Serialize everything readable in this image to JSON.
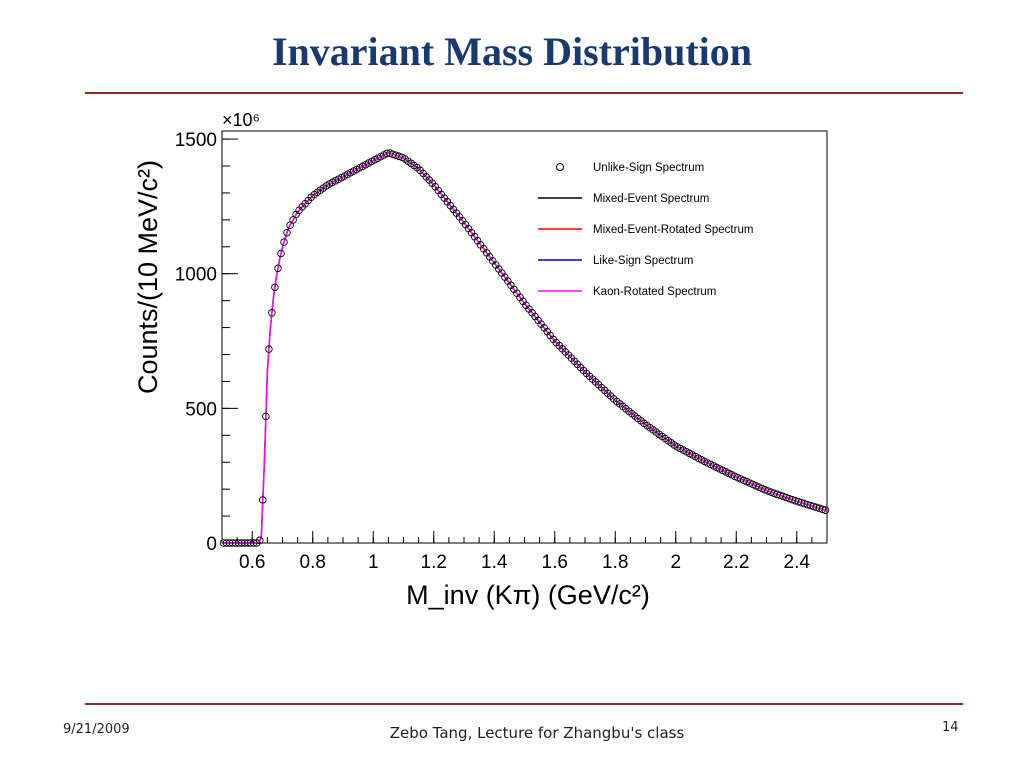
{
  "slide": {
    "title": "Invariant Mass Distribution",
    "footer_date": "9/21/2009",
    "footer_center": "Zebo Tang, Lecture for Zhangbu's class",
    "page_number": "14"
  },
  "colors": {
    "title": "#1a3a6e",
    "rule": "#8b2a2a",
    "mixed_event": "#000000",
    "mixed_event_rotated": "#ff0000",
    "like_sign": "#0000cc",
    "kaon_rotated": "#ff00ff"
  },
  "chart_data": {
    "type": "scatter",
    "title": "",
    "xlabel": "M_inv (Kπ) (GeV/c²)",
    "ylabel": "Counts/(10 MeV/c²)",
    "y_multiplier": "×10⁶",
    "xlim": [
      0.5,
      2.5
    ],
    "ylim": [
      0,
      1500
    ],
    "x_ticks": [
      "0.6",
      "0.8",
      "1",
      "1.2",
      "1.4",
      "1.6",
      "1.8",
      "2",
      "2.2",
      "2.4"
    ],
    "y_ticks": [
      "0",
      "500",
      "1000",
      "1500"
    ],
    "grid": false,
    "legend_position": "top-right",
    "legend": [
      "Unlike-Sign Spectrum",
      "Mixed-Event Spectrum",
      "Mixed-Event-Rotated Spectrum",
      "Like-Sign Spectrum",
      "Kaon-Rotated Spectrum"
    ],
    "curve_points": [
      [
        0.5,
        0
      ],
      [
        0.62,
        0
      ],
      [
        0.63,
        20
      ],
      [
        0.64,
        300
      ],
      [
        0.65,
        640
      ],
      [
        0.66,
        800
      ],
      [
        0.67,
        910
      ],
      [
        0.68,
        990
      ],
      [
        0.69,
        1050
      ],
      [
        0.7,
        1100
      ],
      [
        0.72,
        1170
      ],
      [
        0.75,
        1230
      ],
      [
        0.8,
        1290
      ],
      [
        0.85,
        1330
      ],
      [
        0.9,
        1360
      ],
      [
        0.95,
        1390
      ],
      [
        1.0,
        1420
      ],
      [
        1.05,
        1450
      ],
      [
        1.1,
        1430
      ],
      [
        1.15,
        1390
      ],
      [
        1.2,
        1330
      ],
      [
        1.3,
        1190
      ],
      [
        1.4,
        1040
      ],
      [
        1.5,
        890
      ],
      [
        1.6,
        750
      ],
      [
        1.7,
        635
      ],
      [
        1.8,
        530
      ],
      [
        1.9,
        440
      ],
      [
        2.0,
        360
      ],
      [
        2.1,
        300
      ],
      [
        2.2,
        245
      ],
      [
        2.3,
        195
      ],
      [
        2.4,
        155
      ],
      [
        2.5,
        120
      ]
    ],
    "series": [
      {
        "name": "Unlike-Sign Spectrum",
        "marker": "open-circle"
      },
      {
        "name": "Mixed-Event Spectrum",
        "line": "mixed_event"
      },
      {
        "name": "Mixed-Event-Rotated Spectrum",
        "line": "mixed_event_rotated"
      },
      {
        "name": "Like-Sign Spectrum",
        "line": "like_sign"
      },
      {
        "name": "Kaon-Rotated Spectrum",
        "line": "kaon_rotated"
      }
    ]
  }
}
